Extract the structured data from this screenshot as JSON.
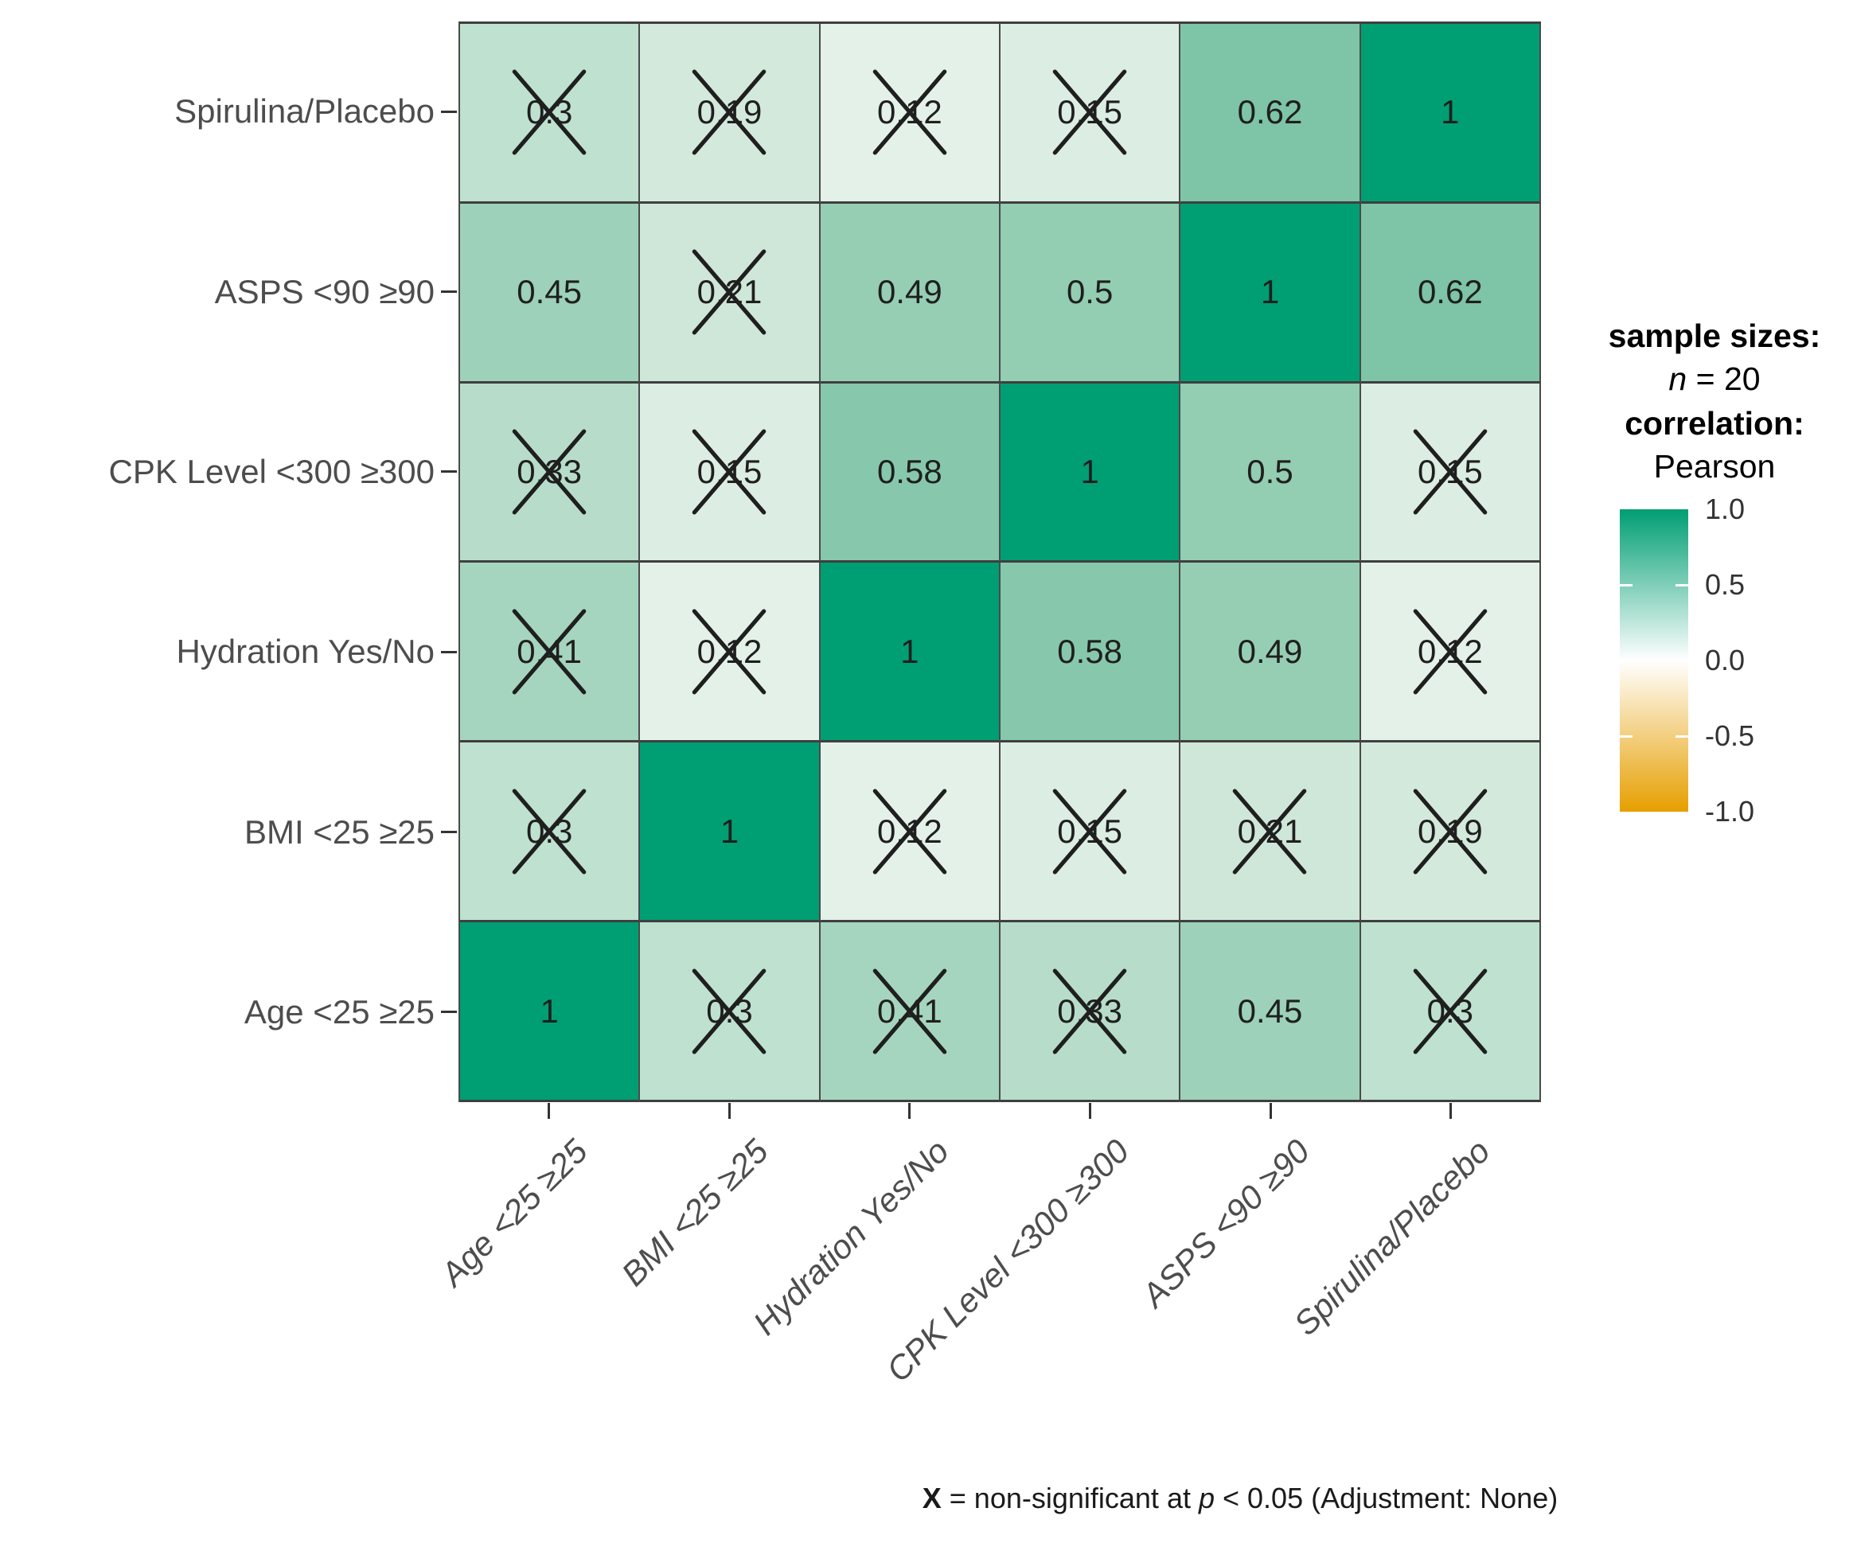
{
  "figure": {
    "kind": "correlation-heatmap",
    "background": "#ffffff",
    "grid_line_color": "#3f3f3f",
    "cell_text_color": "#1f1f1f",
    "axis_text_color": "#4d4d4d",
    "x_mark_color": "#1f1f1f"
  },
  "y_axis_labels": [
    "Spirulina/Placebo",
    "ASPS <90 ≥90",
    "CPK Level <300 ≥300",
    "Hydration Yes/No",
    "BMI <25 ≥25",
    "Age <25 ≥25"
  ],
  "x_axis_labels": [
    "Age <25 ≥25",
    "BMI <25 ≥25",
    "Hydration Yes/No",
    "CPK Level <300 ≥300",
    "ASPS <90 ≥90",
    "Spirulina/Placebo"
  ],
  "cells": [
    [
      {
        "v": "0.3",
        "x": true
      },
      {
        "v": "0.19",
        "x": true
      },
      {
        "v": "0.12",
        "x": true
      },
      {
        "v": "0.15",
        "x": true
      },
      {
        "v": "0.62",
        "x": false
      },
      {
        "v": "1",
        "x": false
      }
    ],
    [
      {
        "v": "0.45",
        "x": false
      },
      {
        "v": "0.21",
        "x": true
      },
      {
        "v": "0.49",
        "x": false
      },
      {
        "v": "0.5",
        "x": false
      },
      {
        "v": "1",
        "x": false
      },
      {
        "v": "0.62",
        "x": false
      }
    ],
    [
      {
        "v": "0.33",
        "x": true
      },
      {
        "v": "0.15",
        "x": true
      },
      {
        "v": "0.58",
        "x": false
      },
      {
        "v": "1",
        "x": false
      },
      {
        "v": "0.5",
        "x": false
      },
      {
        "v": "0.15",
        "x": true
      }
    ],
    [
      {
        "v": "0.41",
        "x": true
      },
      {
        "v": "0.12",
        "x": true
      },
      {
        "v": "1",
        "x": false
      },
      {
        "v": "0.58",
        "x": false
      },
      {
        "v": "0.49",
        "x": false
      },
      {
        "v": "0.12",
        "x": true
      }
    ],
    [
      {
        "v": "0.3",
        "x": true
      },
      {
        "v": "1",
        "x": false
      },
      {
        "v": "0.12",
        "x": true
      },
      {
        "v": "0.15",
        "x": true
      },
      {
        "v": "0.21",
        "x": true
      },
      {
        "v": "0.19",
        "x": true
      }
    ],
    [
      {
        "v": "1",
        "x": false
      },
      {
        "v": "0.3",
        "x": true
      },
      {
        "v": "0.41",
        "x": true
      },
      {
        "v": "0.33",
        "x": true
      },
      {
        "v": "0.45",
        "x": false
      },
      {
        "v": "0.3",
        "x": true
      }
    ]
  ],
  "value_colors": {
    "1": "#009E73",
    "0.62": "#7EC4A7",
    "0.58": "#87C8AC",
    "0.5": "#93CDB2",
    "0.49": "#96CEB4",
    "0.45": "#9DD1B9",
    "0.41": "#A6D5BF",
    "0.33": "#B7DDCA",
    "0.3": "#BEE1D0",
    "0.21": "#CFE7D9",
    "0.19": "#D3E9DC",
    "0.15": "#DCEDE3",
    "0.12": "#E4F1E9"
  },
  "legend": {
    "sample_sizes_title": "sample sizes:",
    "sample_n_prefix": "n",
    "sample_n_rest": " = 20",
    "correlation_title": "correlation:",
    "correlation_method": "Pearson",
    "colorbar_ticks": [
      "1.0",
      "0.5",
      "0.0",
      "-0.5",
      "-1.0"
    ],
    "colorbar_top_color": "#009E73",
    "colorbar_mid_color": "#FFFFFF",
    "colorbar_bottom_color": "#E69F00"
  },
  "caption": {
    "x_symbol": "X",
    "mid": " = non-significant at ",
    "p_symbol": "p",
    "end": " < 0.05 (Adjustment: None)"
  },
  "chart_data": {
    "type": "heatmap",
    "title": "",
    "variables": [
      "Age <25 ≥25",
      "BMI <25 ≥25",
      "Hydration Yes/No",
      "CPK Level <300 ≥300",
      "ASPS <90 ≥90",
      "Spirulina/Placebo"
    ],
    "y_order_top_to_bottom": [
      "Spirulina/Placebo",
      "ASPS <90 ≥90",
      "CPK Level <300 ≥300",
      "Hydration Yes/No",
      "BMI <25 ≥25",
      "Age <25 ≥25"
    ],
    "matrix_rows_top_to_bottom": [
      [
        0.3,
        0.19,
        0.12,
        0.15,
        0.62,
        1
      ],
      [
        0.45,
        0.21,
        0.49,
        0.5,
        1,
        0.62
      ],
      [
        0.33,
        0.15,
        0.58,
        1,
        0.5,
        0.15
      ],
      [
        0.41,
        0.12,
        1,
        0.58,
        0.49,
        0.12
      ],
      [
        0.3,
        1,
        0.12,
        0.15,
        0.21,
        0.19
      ],
      [
        1,
        0.3,
        0.41,
        0.33,
        0.45,
        0.3
      ]
    ],
    "non_significant_mask_rows_top_to_bottom": [
      [
        true,
        true,
        true,
        true,
        false,
        false
      ],
      [
        false,
        true,
        false,
        false,
        false,
        false
      ],
      [
        true,
        true,
        false,
        false,
        false,
        true
      ],
      [
        true,
        true,
        false,
        false,
        false,
        true
      ],
      [
        true,
        false,
        true,
        true,
        true,
        true
      ],
      [
        false,
        true,
        true,
        true,
        false,
        true
      ]
    ],
    "correlation_method": "Pearson",
    "sample_size": 20,
    "color_scale_limits": [
      -1.0,
      1.0
    ],
    "color_scale_ticks": [
      1.0,
      0.5,
      0.0,
      -0.5,
      -1.0
    ],
    "legend_position": "right",
    "note": "X = non-significant at p < 0.05 (Adjustment: None)"
  }
}
